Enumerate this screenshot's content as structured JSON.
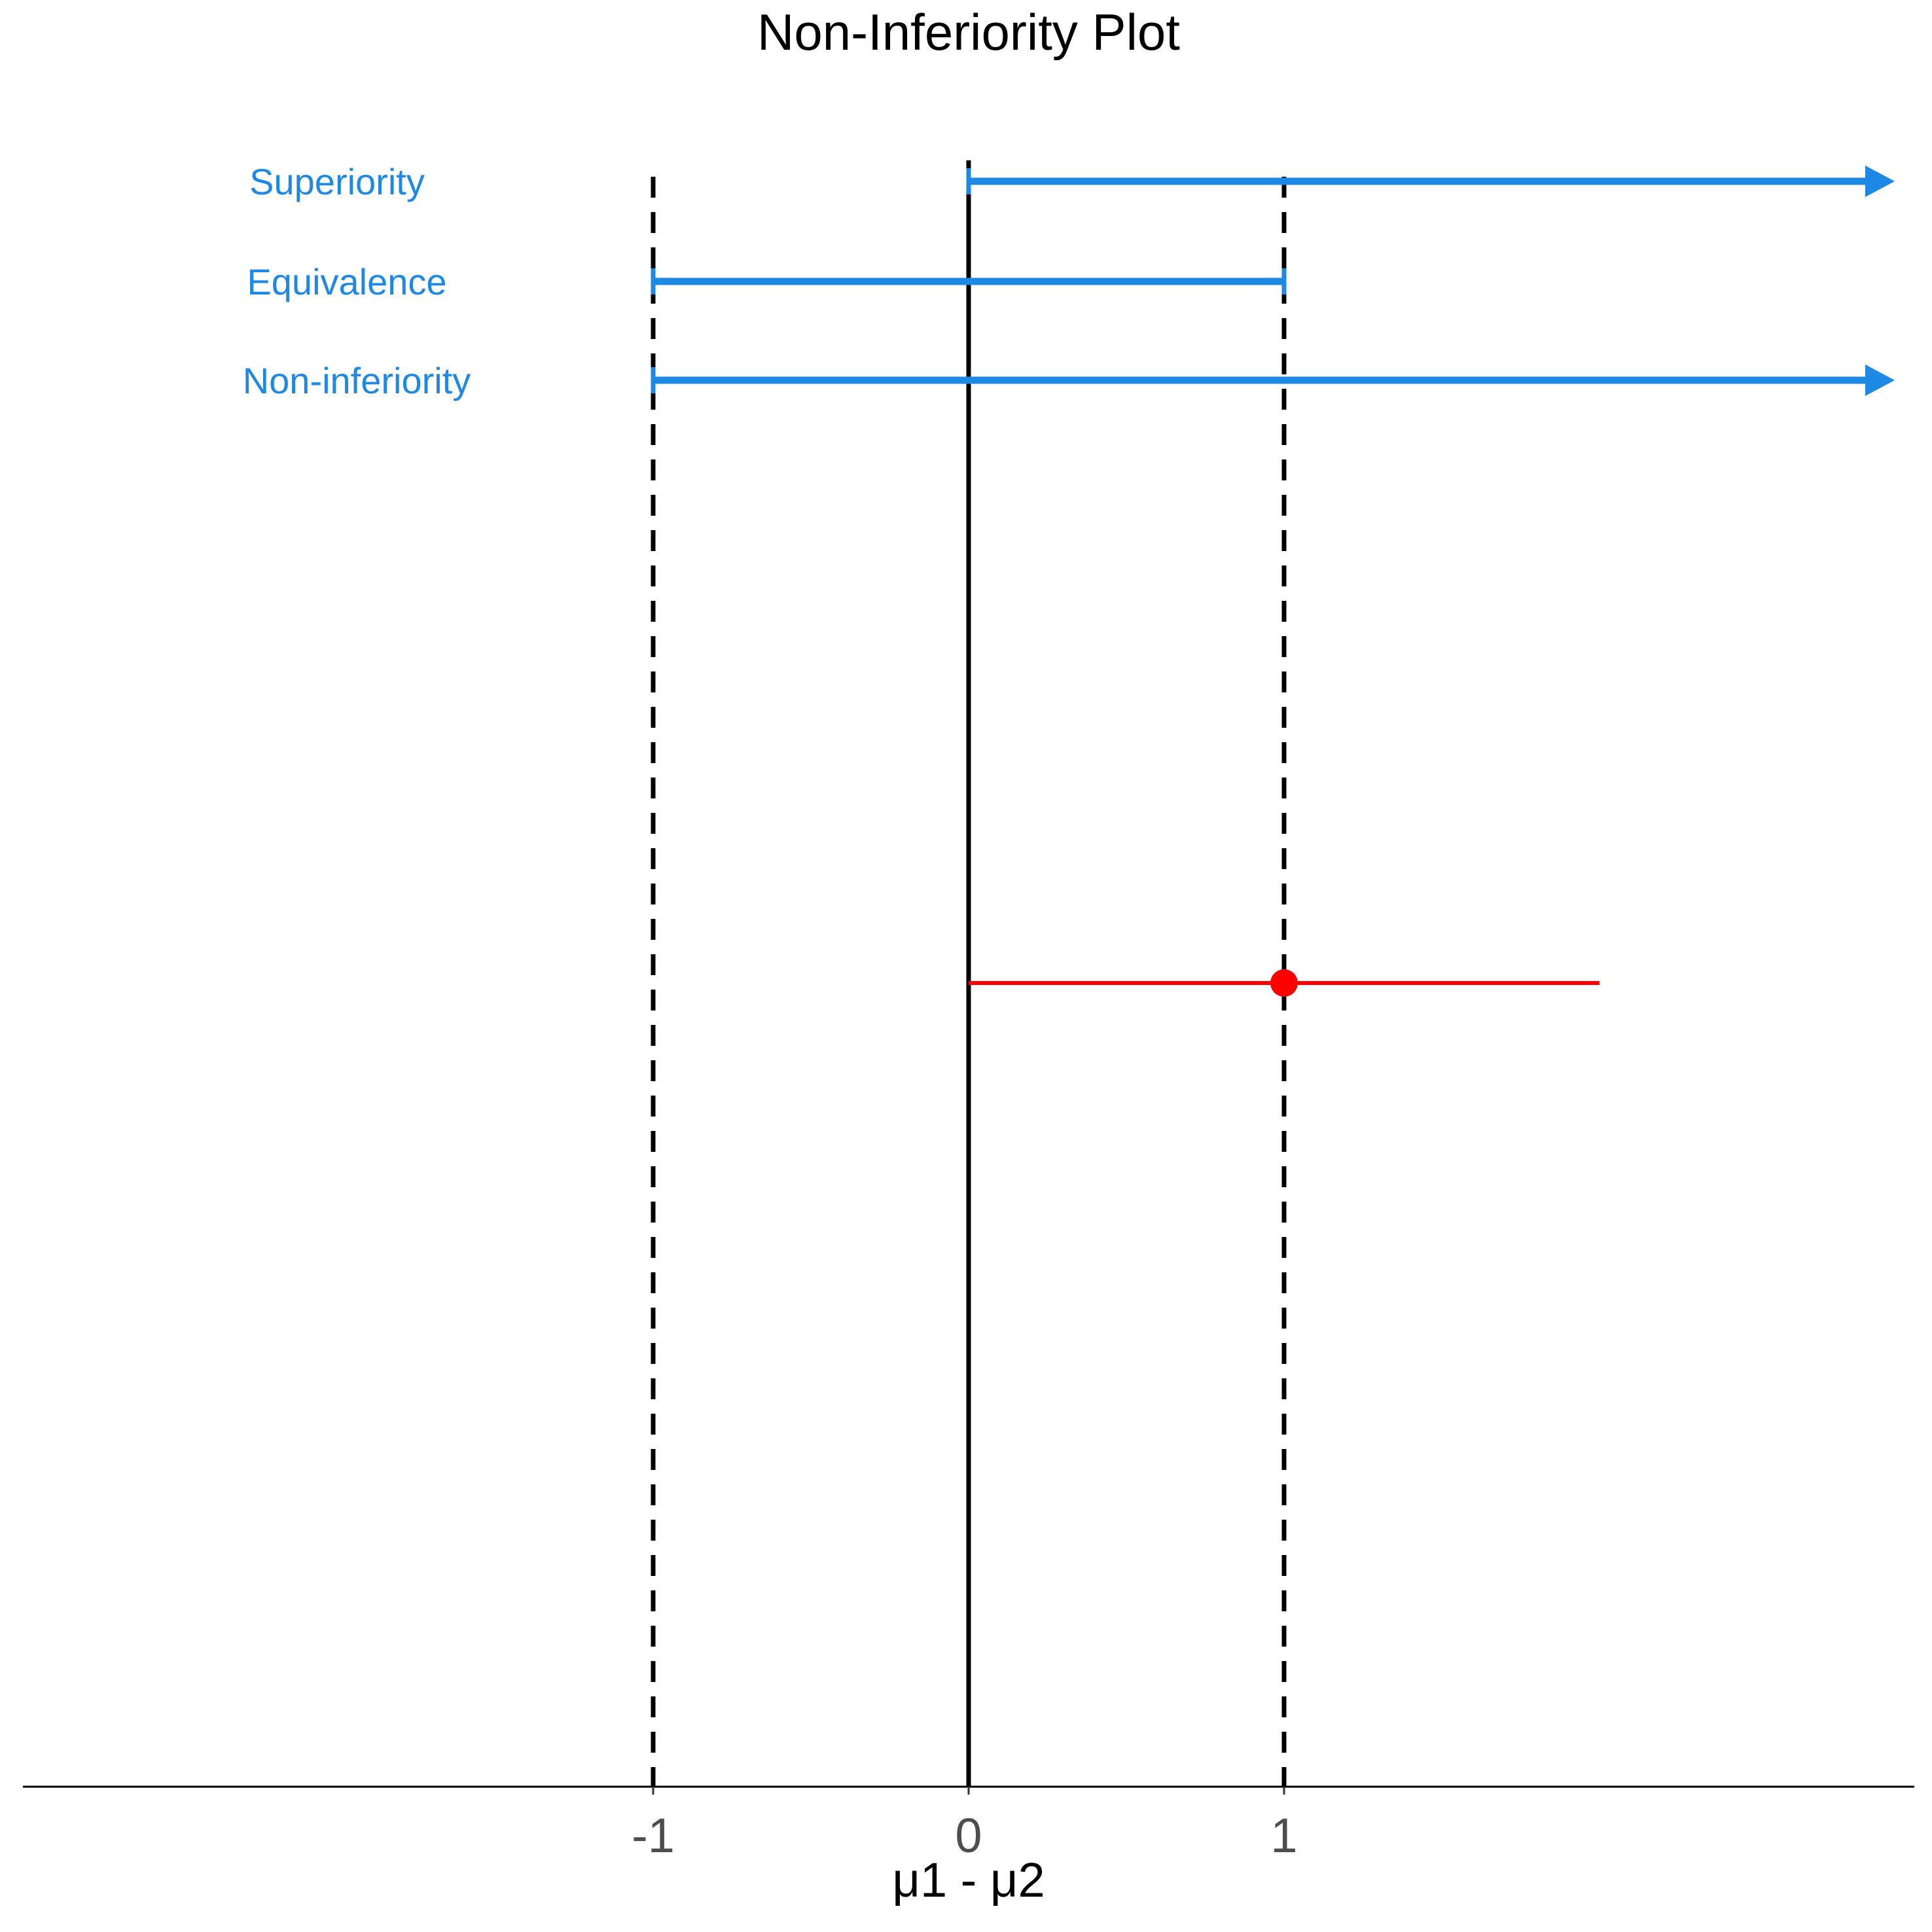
{
  "chart_data": {
    "type": "interval",
    "title": "Non-Inferiority Plot",
    "xlabel": "μ1 - μ2",
    "ylabel": "",
    "x_ticks": [
      -1,
      0,
      1
    ],
    "x_tick_labels": [
      "-1",
      "0",
      "1"
    ],
    "xlim": [
      -3,
      3
    ],
    "zero_line": 0,
    "margin_lines": [
      -1,
      1
    ],
    "grid": false,
    "accent_color": "#1e88e5",
    "estimate_color": "#ff0000",
    "regions": [
      {
        "label": "Superiority",
        "lower": 0,
        "upper": null,
        "open_upper": true
      },
      {
        "label": "Equivalence",
        "lower": -1,
        "upper": 1,
        "open_upper": false
      },
      {
        "label": "Non-inferiority",
        "lower": -1,
        "upper": null,
        "open_upper": true
      }
    ],
    "estimate": {
      "point": 1,
      "lower": 0,
      "upper": 2
    }
  }
}
